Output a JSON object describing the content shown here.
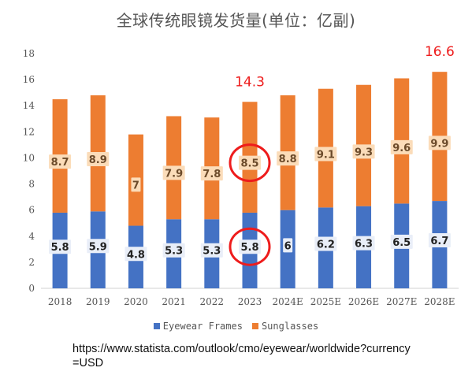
{
  "chart_data": {
    "type": "bar",
    "stacked": true,
    "title": "全球传统眼镜发货量(单位：亿副)",
    "categories": [
      "2018",
      "2019",
      "2020",
      "2021",
      "2022",
      "2023",
      "2024E",
      "2025E",
      "2026E",
      "2027E",
      "2028E"
    ],
    "series": [
      {
        "name": "Eyewear Frames",
        "color": "#4472c4",
        "values": [
          5.8,
          5.9,
          4.8,
          5.3,
          5.3,
          5.8,
          6,
          6.2,
          6.3,
          6.5,
          6.7
        ]
      },
      {
        "name": "Sunglasses",
        "color": "#ed7d31",
        "values": [
          8.7,
          8.9,
          7,
          7.9,
          7.8,
          8.5,
          8.8,
          9.1,
          9.3,
          9.6,
          9.9
        ]
      }
    ],
    "totals_annotations": [
      {
        "category": "2023",
        "text": "14.3"
      },
      {
        "category": "2028E",
        "text": "16.6"
      }
    ],
    "highlighted": [
      {
        "category": "2023",
        "series": "Sunglasses"
      },
      {
        "category": "2023",
        "series": "Eyewear Frames"
      }
    ],
    "ylim": [
      0,
      18
    ],
    "yticks": [
      0,
      2,
      4,
      6,
      8,
      10,
      12,
      14,
      16,
      18
    ],
    "grid": false,
    "legend_position": "bottom",
    "highlight_color": "#ee1c1c"
  },
  "source_text": "https://www.statista.com/outlook/cmo/eyewear/worldwide?currency=USD"
}
